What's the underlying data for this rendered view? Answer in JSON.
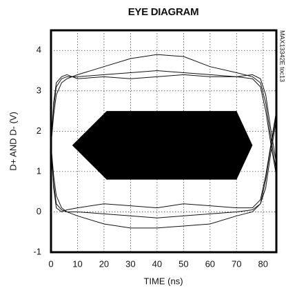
{
  "chart_data": {
    "type": "line",
    "title": "EYE DIAGRAM",
    "x_label": "TIME (ns)",
    "y_label": "D+ AND D- (V)",
    "note": "MAX13342E toc13",
    "xlim": [
      0,
      85
    ],
    "xticks": [
      0,
      10,
      20,
      30,
      40,
      50,
      60,
      70,
      80
    ],
    "ylim": [
      -1,
      4.5
    ],
    "yticks": [
      -1,
      0,
      1,
      2,
      3,
      4
    ],
    "grid": true,
    "x": [
      0,
      1,
      2,
      4,
      6,
      10,
      20,
      30,
      40,
      50,
      60,
      70,
      76,
      79,
      81,
      83,
      85
    ],
    "series": [
      {
        "color": "#111111",
        "values": [
          1.65,
          2.6,
          3.1,
          3.3,
          3.35,
          3.35,
          3.4,
          3.45,
          3.5,
          3.45,
          3.4,
          3.35,
          3.3,
          3.1,
          2.5,
          1.65,
          0.9
        ]
      },
      {
        "color": "#111111",
        "values": [
          1.65,
          2.4,
          2.9,
          3.2,
          3.3,
          3.4,
          3.6,
          3.8,
          3.9,
          3.85,
          3.6,
          3.45,
          3.35,
          3.2,
          2.7,
          1.8,
          1.0
        ]
      },
      {
        "color": "#111111",
        "values": [
          1.65,
          2.7,
          3.2,
          3.35,
          3.4,
          3.3,
          3.35,
          3.3,
          3.35,
          3.4,
          3.35,
          3.35,
          3.4,
          3.3,
          2.9,
          2.0,
          1.2
        ]
      },
      {
        "color": "#111111",
        "values": [
          1.65,
          0.7,
          0.2,
          0.05,
          0.0,
          0.0,
          -0.05,
          -0.1,
          -0.15,
          -0.1,
          -0.05,
          0.0,
          0.05,
          0.2,
          0.8,
          1.65,
          2.4
        ]
      },
      {
        "color": "#111111",
        "values": [
          1.65,
          0.9,
          0.4,
          0.1,
          0.0,
          -0.1,
          -0.3,
          -0.4,
          -0.4,
          -0.35,
          -0.3,
          -0.1,
          0.0,
          0.2,
          0.6,
          1.5,
          2.3
        ]
      },
      {
        "color": "#111111",
        "values": [
          1.65,
          0.6,
          0.1,
          0.0,
          0.05,
          0.1,
          0.2,
          0.15,
          0.1,
          0.2,
          0.15,
          0.1,
          0.1,
          0.3,
          0.9,
          1.7,
          2.5
        ]
      }
    ],
    "mask": {
      "color": "#000000",
      "x": [
        8,
        21,
        70,
        76,
        70,
        21
      ],
      "y": [
        1.65,
        2.5,
        2.5,
        1.65,
        0.8,
        0.8
      ]
    }
  }
}
